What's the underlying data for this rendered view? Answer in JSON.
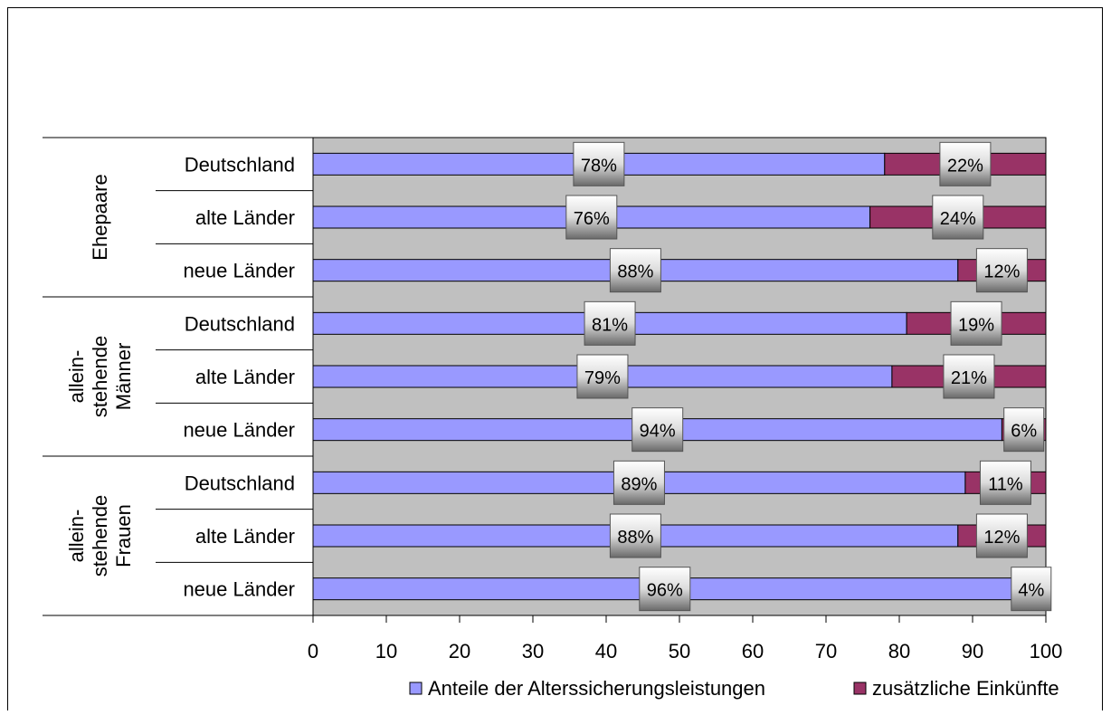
{
  "chart_data": {
    "type": "bar",
    "orientation": "horizontal",
    "stacked": true,
    "groups": [
      {
        "label": "Ehepaare",
        "categories": [
          "Deutschland",
          "alte Länder",
          "neue Länder"
        ]
      },
      {
        "label": "allein-\nstehende\nMänner",
        "categories": [
          "Deutschland",
          "alte Länder",
          "neue Länder"
        ]
      },
      {
        "label": "allein-\nstehende\nFrauen",
        "categories": [
          "Deutschland",
          "alte Länder",
          "neue Länder"
        ]
      }
    ],
    "series": [
      {
        "name": "Anteile der Alterssicherungsleistungen",
        "color": "#9999ff",
        "values": [
          78,
          76,
          88,
          81,
          79,
          94,
          89,
          88,
          96
        ],
        "labels": [
          "78%",
          "76%",
          "88%",
          "81%",
          "79%",
          "94%",
          "89%",
          "88%",
          "96%"
        ]
      },
      {
        "name": "zusätzliche Einkünfte",
        "color": "#993366",
        "values": [
          22,
          24,
          12,
          19,
          21,
          6,
          11,
          12,
          4
        ],
        "labels": [
          "22%",
          "24%",
          "12%",
          "19%",
          "21%",
          "6%",
          "11%",
          "12%",
          "4%"
        ]
      }
    ],
    "xlim": [
      0,
      100
    ],
    "xticks": [
      "0",
      "10",
      "20",
      "30",
      "40",
      "50",
      "60",
      "70",
      "80",
      "90",
      "100"
    ],
    "plot_background": "#c0c0c0",
    "grid": false,
    "legend_position": "bottom",
    "title": "",
    "xlabel": "",
    "ylabel": ""
  }
}
